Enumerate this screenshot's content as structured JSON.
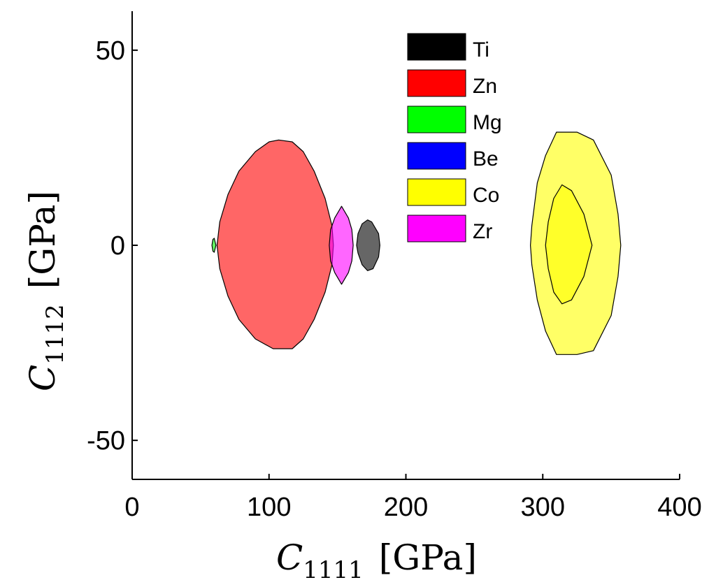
{
  "chart_data": {
    "type": "region",
    "title": "",
    "xlabel": {
      "symbol": "C",
      "subscript": "1111",
      "unit": "[GPa]"
    },
    "ylabel": {
      "symbol": "C",
      "subscript": "1112",
      "unit": "[GPa]"
    },
    "xlim": [
      0,
      400
    ],
    "ylim": [
      -60,
      60
    ],
    "xticks": [
      0,
      100,
      200,
      300,
      400
    ],
    "yticks": [
      -50,
      0,
      50
    ],
    "xtick_labels": [
      "0",
      "100",
      "200",
      "300",
      "400"
    ],
    "ytick_labels": [
      "-50",
      "0",
      "50"
    ],
    "legend_position": "top-center",
    "series": [
      {
        "name": "Ti",
        "color": "#000000",
        "regions": [
          {
            "points": [
              [
                175,
                6
              ],
              [
                180,
                3
              ],
              [
                181,
                0
              ],
              [
                180,
                -3
              ],
              [
                176,
                -6
              ],
              [
                172,
                -6.5
              ],
              [
                168,
                -5
              ],
              [
                165,
                -2
              ],
              [
                164,
                0
              ],
              [
                165,
                3
              ],
              [
                168,
                5.5
              ],
              [
                172,
                6.5
              ]
            ]
          }
        ]
      },
      {
        "name": "Zn",
        "color": "#ff0000",
        "regions": [
          {
            "points": [
              [
                107,
                27
              ],
              [
                117,
                26.5
              ],
              [
                125,
                24
              ],
              [
                133,
                19
              ],
              [
                141,
                12
              ],
              [
                146,
                5
              ],
              [
                147,
                0
              ],
              [
                146,
                -5
              ],
              [
                141,
                -12
              ],
              [
                133,
                -19
              ],
              [
                125,
                -24
              ],
              [
                117,
                -26.5
              ],
              [
                103,
                -26.5
              ],
              [
                90,
                -24
              ],
              [
                78,
                -19
              ],
              [
                70,
                -13
              ],
              [
                64,
                -6
              ],
              [
                62,
                0
              ],
              [
                64,
                6
              ],
              [
                70,
                13
              ],
              [
                78,
                19
              ],
              [
                90,
                24
              ],
              [
                100,
                26.5
              ]
            ]
          }
        ]
      },
      {
        "name": "Mg",
        "color": "#00ff00",
        "regions": [
          {
            "points": [
              [
                60,
                1.8
              ],
              [
                61.2,
                0
              ],
              [
                60,
                -1.8
              ],
              [
                59,
                -1.5
              ],
              [
                58.3,
                0
              ],
              [
                59,
                1.5
              ]
            ]
          }
        ]
      },
      {
        "name": "Be",
        "color": "#0000ff",
        "regions": []
      },
      {
        "name": "Co",
        "color": "#ffff00",
        "regions": [
          {
            "points": [
              [
                310,
                29
              ],
              [
                325,
                29
              ],
              [
                337,
                27
              ],
              [
                350,
                18
              ],
              [
                355,
                8
              ],
              [
                357,
                0
              ],
              [
                355,
                -8
              ],
              [
                350,
                -18
              ],
              [
                337,
                -27
              ],
              [
                325,
                -28
              ],
              [
                310,
                -28
              ],
              [
                302,
                -22
              ],
              [
                296,
                -14
              ],
              [
                292,
                -5
              ],
              [
                291,
                0
              ],
              [
                292,
                5
              ],
              [
                296,
                16
              ],
              [
                302,
                23
              ]
            ]
          },
          {
            "points": [
              [
                314,
                15.5
              ],
              [
                321,
                14
              ],
              [
                330,
                8
              ],
              [
                336,
                0
              ],
              [
                330,
                -8
              ],
              [
                321,
                -14
              ],
              [
                314,
                -15
              ],
              [
                308,
                -12
              ],
              [
                304,
                -6
              ],
              [
                302,
                0
              ],
              [
                304,
                6
              ],
              [
                308,
                12
              ]
            ]
          }
        ]
      },
      {
        "name": "Zr",
        "color": "#ff00ff",
        "regions": [
          {
            "points": [
              [
                153,
                10
              ],
              [
                158,
                7
              ],
              [
                160.5,
                4
              ],
              [
                161.5,
                0
              ],
              [
                160.5,
                -4
              ],
              [
                158,
                -7
              ],
              [
                153,
                -10
              ],
              [
                148,
                -7
              ],
              [
                145,
                -4
              ],
              [
                144,
                0
              ],
              [
                145,
                4
              ],
              [
                148,
                7
              ]
            ]
          }
        ]
      }
    ]
  }
}
